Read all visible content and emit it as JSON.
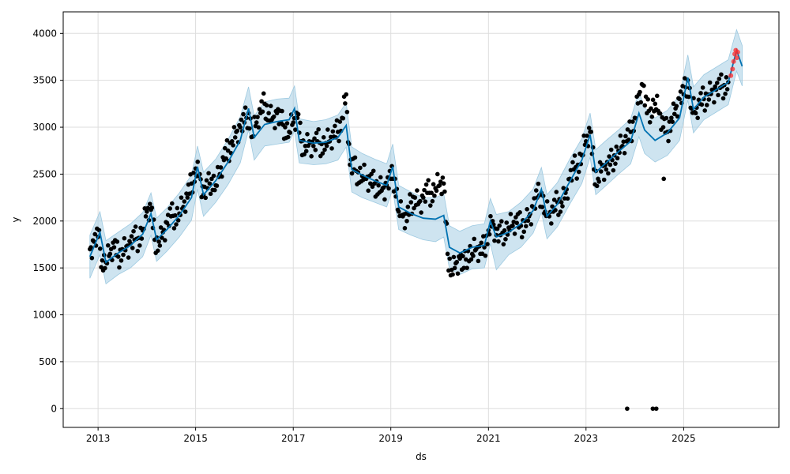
{
  "chart_data": {
    "type": "line",
    "title": "",
    "xlabel": "ds",
    "ylabel": "y",
    "xlim": [
      "2012-04-15",
      "2026-12-15"
    ],
    "ylim": [
      -200,
      4230
    ],
    "grid": true,
    "x_ticks": [
      "2013",
      "2015",
      "2017",
      "2019",
      "2021",
      "2023",
      "2025"
    ],
    "y_ticks": [
      "0",
      "500",
      "1000",
      "1500",
      "2000",
      "2500",
      "3000",
      "3500",
      "4000"
    ],
    "colors": {
      "forecast": "#0072B2",
      "uncertainty": "#9ecae1",
      "observed": "#000000",
      "recent": "#ff2a2a",
      "grid": "#dddddd"
    },
    "forecast": {
      "x": [
        "2012-11-01",
        "2013-01-15",
        "2013-03-01",
        "2013-06-01",
        "2013-09-01",
        "2013-12-01",
        "2014-02-01",
        "2014-03-15",
        "2014-06-01",
        "2014-09-01",
        "2014-12-01",
        "2015-01-15",
        "2015-03-01",
        "2015-06-01",
        "2015-09-01",
        "2015-12-01",
        "2016-02-01",
        "2016-03-15",
        "2016-06-01",
        "2016-09-01",
        "2016-12-01",
        "2017-01-10",
        "2017-02-15",
        "2017-06-01",
        "2017-09-01",
        "2017-12-01",
        "2018-02-01",
        "2018-03-15",
        "2018-06-01",
        "2018-09-01",
        "2018-12-01",
        "2019-01-15",
        "2019-03-01",
        "2019-06-01",
        "2019-09-01",
        "2019-12-01",
        "2020-02-01",
        "2020-03-15",
        "2020-06-01",
        "2020-09-01",
        "2020-12-01",
        "2021-01-15",
        "2021-03-01",
        "2021-06-01",
        "2021-09-01",
        "2021-12-01",
        "2022-02-01",
        "2022-03-15",
        "2022-06-01",
        "2022-09-01",
        "2022-12-01",
        "2023-02-01",
        "2023-03-15",
        "2023-06-01",
        "2023-09-01",
        "2023-12-01",
        "2024-02-01",
        "2024-03-15",
        "2024-06-01",
        "2024-09-01",
        "2024-12-01",
        "2025-02-01",
        "2025-03-15",
        "2025-06-01",
        "2025-09-01",
        "2025-12-01",
        "2026-02-01",
        "2026-03-15"
      ],
      "yhat": [
        1620,
        1880,
        1560,
        1660,
        1740,
        1860,
        2080,
        1800,
        1910,
        2060,
        2250,
        2580,
        2280,
        2430,
        2630,
        2860,
        3200,
        2890,
        3030,
        3060,
        3080,
        3200,
        2860,
        2830,
        2840,
        2890,
        3020,
        2550,
        2490,
        2430,
        2380,
        2580,
        2150,
        2080,
        2030,
        2020,
        2060,
        1720,
        1660,
        1720,
        1740,
        2000,
        1830,
        1880,
        1970,
        2110,
        2340,
        2050,
        2180,
        2420,
        2650,
        2920,
        2520,
        2620,
        2740,
        2850,
        3150,
        2970,
        2860,
        2940,
        3100,
        3530,
        3190,
        3320,
        3400,
        3480,
        3820,
        3650
      ],
      "lower": [
        1390,
        1640,
        1330,
        1430,
        1500,
        1620,
        1850,
        1570,
        1680,
        1830,
        2010,
        2340,
        2050,
        2200,
        2390,
        2620,
        2970,
        2650,
        2800,
        2820,
        2840,
        2960,
        2620,
        2600,
        2610,
        2650,
        2790,
        2310,
        2250,
        2200,
        2150,
        2340,
        1910,
        1850,
        1800,
        1780,
        1830,
        1490,
        1430,
        1490,
        1500,
        1760,
        1480,
        1640,
        1720,
        1870,
        2090,
        1810,
        1940,
        2180,
        2400,
        2680,
        2280,
        2380,
        2500,
        2610,
        2900,
        2720,
        2630,
        2700,
        2860,
        3290,
        2940,
        3080,
        3160,
        3240,
        3600,
        3440
      ],
      "upper": [
        1850,
        2100,
        1790,
        1880,
        1970,
        2090,
        2300,
        2030,
        2140,
        2300,
        2490,
        2800,
        2520,
        2660,
        2870,
        3110,
        3430,
        3120,
        3270,
        3300,
        3310,
        3440,
        3090,
        3060,
        3080,
        3130,
        3260,
        2790,
        2720,
        2660,
        2610,
        2820,
        2380,
        2310,
        2250,
        2250,
        2290,
        1950,
        1890,
        1950,
        1970,
        2240,
        2070,
        2100,
        2200,
        2340,
        2570,
        2280,
        2410,
        2660,
        2880,
        3150,
        2760,
        2860,
        2970,
        3090,
        3380,
        3210,
        3100,
        3180,
        3340,
        3770,
        3430,
        3560,
        3640,
        3720,
        4040,
        3870
      ]
    },
    "observed": {
      "x": [
        "2012-11-01",
        "2012-12-01",
        "2013-01-01",
        "2013-02-01",
        "2013-03-01",
        "2013-04-01",
        "2013-05-01",
        "2013-06-01",
        "2013-07-01",
        "2013-08-01",
        "2013-09-01",
        "2013-10-01",
        "2013-11-01",
        "2013-12-01",
        "2014-01-01",
        "2014-02-01",
        "2014-03-01",
        "2014-04-01",
        "2014-05-01",
        "2014-06-01",
        "2014-07-01",
        "2014-08-01",
        "2014-09-01",
        "2014-10-01",
        "2014-11-01",
        "2014-12-01",
        "2015-01-01",
        "2015-02-01",
        "2015-03-01",
        "2015-04-01",
        "2015-05-01",
        "2015-06-01",
        "2015-07-01",
        "2015-08-01",
        "2015-09-01",
        "2015-10-01",
        "2015-11-01",
        "2015-12-01",
        "2016-01-01",
        "2016-02-01",
        "2016-03-01",
        "2016-04-01",
        "2016-05-01",
        "2016-06-01",
        "2016-07-01",
        "2016-08-01",
        "2016-09-01",
        "2016-10-01",
        "2016-11-01",
        "2016-12-01",
        "2017-01-01",
        "2017-02-01",
        "2017-03-01",
        "2017-04-01",
        "2017-05-01",
        "2017-06-01",
        "2017-07-01",
        "2017-08-01",
        "2017-09-01",
        "2017-10-01",
        "2017-11-01",
        "2017-12-01",
        "2018-01-01",
        "2018-02-01",
        "2018-03-01",
        "2018-04-01",
        "2018-05-01",
        "2018-06-01",
        "2018-07-01",
        "2018-08-01",
        "2018-09-01",
        "2018-10-01",
        "2018-11-01",
        "2018-12-01",
        "2019-01-01",
        "2019-02-01",
        "2019-03-01",
        "2019-04-01",
        "2019-05-01",
        "2019-06-01",
        "2019-07-01",
        "2019-08-01",
        "2019-09-01",
        "2019-10-01",
        "2019-11-01",
        "2019-12-01",
        "2020-01-01",
        "2020-02-01",
        "2020-03-01",
        "2020-04-01",
        "2020-05-01",
        "2020-06-01",
        "2020-07-01",
        "2020-08-01",
        "2020-09-01",
        "2020-10-01",
        "2020-11-01",
        "2020-12-01",
        "2021-01-01",
        "2021-02-01",
        "2021-03-01",
        "2021-04-01",
        "2021-05-01",
        "2021-06-01",
        "2021-07-01",
        "2021-08-01",
        "2021-09-01",
        "2021-10-01",
        "2021-11-01",
        "2021-12-01",
        "2022-01-01",
        "2022-02-01",
        "2022-03-01",
        "2022-04-01",
        "2022-05-01",
        "2022-06-01",
        "2022-07-01",
        "2022-08-01",
        "2022-09-01",
        "2022-10-01",
        "2022-11-01",
        "2022-12-01",
        "2023-01-01",
        "2023-02-01",
        "2023-03-01",
        "2023-04-01",
        "2023-05-01",
        "2023-06-01",
        "2023-07-01",
        "2023-08-01",
        "2023-09-01",
        "2023-10-01",
        "2023-11-01",
        "2023-12-01",
        "2024-01-01",
        "2024-02-01",
        "2024-03-01",
        "2024-04-01",
        "2024-05-01",
        "2024-06-01",
        "2024-07-01",
        "2024-08-01",
        "2024-09-01",
        "2024-10-01",
        "2024-11-01",
        "2024-12-01",
        "2025-01-01",
        "2025-02-01",
        "2025-03-01",
        "2025-04-01",
        "2025-05-01",
        "2025-06-01",
        "2025-07-01",
        "2025-08-01",
        "2025-09-01",
        "2025-10-01",
        "2025-11-01",
        "2025-12-01"
      ],
      "y": [
        1700,
        1780,
        1830,
        1580,
        1560,
        1650,
        1720,
        1620,
        1700,
        1730,
        1760,
        1800,
        1820,
        1900,
        2100,
        2120,
        1800,
        1780,
        1880,
        1980,
        2050,
        2060,
        2080,
        2150,
        2250,
        2400,
        2560,
        2500,
        2280,
        2350,
        2450,
        2380,
        2500,
        2650,
        2750,
        2850,
        2950,
        3000,
        3050,
        3150,
        2900,
        3050,
        3150,
        3250,
        3150,
        3100,
        3150,
        3050,
        3000,
        2950,
        3050,
        3100,
        2850,
        2800,
        2850,
        2800,
        2850,
        2820,
        2830,
        2850,
        2900,
        2950,
        3100,
        3350,
        2600,
        2550,
        2520,
        2480,
        2450,
        2400,
        2400,
        2380,
        2350,
        2380,
        2450,
        2450,
        2100,
        2050,
        2000,
        2200,
        2250,
        2200,
        2250,
        2300,
        2300,
        2350,
        2380,
        2400,
        1650,
        1480,
        1550,
        1600,
        1500,
        1680,
        1650,
        1700,
        1650,
        1720,
        1900,
        2000,
        1850,
        1850,
        1900,
        1930,
        1950,
        1980,
        1950,
        2000,
        2050,
        2150,
        2250,
        2300,
        2100,
        2050,
        2100,
        2200,
        2200,
        2300,
        2450,
        2550,
        2600,
        2700,
        2850,
        2950,
        2550,
        2450,
        2600,
        2550,
        2600,
        2700,
        2750,
        2800,
        2850,
        2950,
        3100,
        3350,
        3450,
        3150,
        3200,
        3250,
        3150,
        3000,
        2950,
        3100,
        3200,
        3300,
        3350,
        3500,
        3200,
        3150,
        3250,
        3300,
        3350,
        3400,
        3400,
        3420,
        3450,
        3480
      ]
    },
    "outliers": {
      "x": [
        "2023-11-05",
        "2024-05-15",
        "2024-06-10",
        "2024-08-05"
      ],
      "y": [
        0,
        0,
        0,
        2450
      ]
    },
    "recent": {
      "x": [
        "2025-12-20",
        "2026-01-02",
        "2026-01-10",
        "2026-01-18",
        "2026-01-26",
        "2026-02-03",
        "2026-02-10"
      ],
      "y": [
        3550,
        3620,
        3700,
        3780,
        3820,
        3740,
        3800
      ]
    }
  }
}
